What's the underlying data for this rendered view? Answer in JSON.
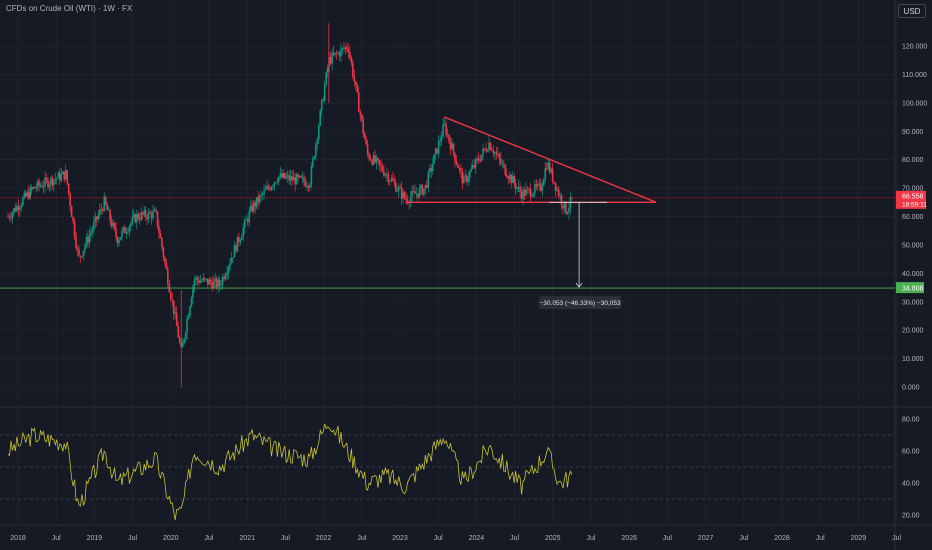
{
  "header": {
    "title": "CFDs on Crude Oil (WTI) · 1W · FX",
    "currency_button": "USD"
  },
  "colors": {
    "bg": "#161a25",
    "grid": "#1f232e",
    "up": "#089981",
    "down": "#f23645",
    "pattern": "#f23645",
    "target_line": "#4caf50",
    "rsi": "#c5c234",
    "axis_text": "#b2b5be"
  },
  "price_axis": {
    "ticks": [
      "120.000",
      "110.000",
      "100.000",
      "90.000",
      "80.000",
      "70.000",
      "60.000",
      "50.000",
      "40.000",
      "30.000",
      "20.000",
      "10.000",
      "0.000"
    ]
  },
  "rsi_axis": {
    "ticks": [
      "80.00",
      "60.00",
      "40.00",
      "20.00"
    ]
  },
  "time_axis": {
    "ticks": [
      "2018",
      "Jul",
      "2019",
      "Jul",
      "2020",
      "Jul",
      "2021",
      "Jul",
      "2022",
      "Jul",
      "2023",
      "Jul",
      "2024",
      "Jul",
      "2025",
      "Jul",
      "2026",
      "Jul",
      "2027",
      "Jul",
      "2028",
      "Jul",
      "2029",
      "Jul"
    ]
  },
  "current_price": {
    "value": "66.558",
    "countdown": "18:59:11"
  },
  "target_price": {
    "value": "34.808"
  },
  "measure_label": "−30.053 (−46.33%) −30,053",
  "chart_data": {
    "type": "candlestick",
    "title": "CFDs on Crude Oil (WTI) · 1W · FX",
    "x_range": [
      "2018-01",
      "2029-07"
    ],
    "ylim": [
      0,
      125
    ],
    "price_path": [
      [
        "2018-01",
        60
      ],
      [
        "2018-05",
        70
      ],
      [
        "2018-10",
        75
      ],
      [
        "2018-12",
        45
      ],
      [
        "2019-04",
        65
      ],
      [
        "2019-06",
        52
      ],
      [
        "2019-09",
        60
      ],
      [
        "2019-12",
        61
      ],
      [
        "2020-03",
        25
      ],
      [
        "2020-04",
        12
      ],
      [
        "2020-06",
        38
      ],
      [
        "2020-10",
        36
      ],
      [
        "2021-03",
        63
      ],
      [
        "2021-07",
        74
      ],
      [
        "2021-12",
        72
      ],
      [
        "2022-03",
        115
      ],
      [
        "2022-06",
        120
      ],
      [
        "2022-09",
        82
      ],
      [
        "2022-12",
        75
      ],
      [
        "2023-03",
        66
      ],
      [
        "2023-06",
        70
      ],
      [
        "2023-09",
        92
      ],
      [
        "2023-12",
        72
      ],
      [
        "2024-04",
        86
      ],
      [
        "2024-06",
        78
      ],
      [
        "2024-09",
        68
      ],
      [
        "2024-12",
        70
      ],
      [
        "2025-01",
        79
      ],
      [
        "2025-03",
        67
      ],
      [
        "2025-04",
        62
      ],
      [
        "2025-05",
        66.558
      ]
    ],
    "descending_triangle": {
      "resistance": [
        [
          "2023-09",
          95
        ],
        [
          "2026-06",
          65
        ]
      ],
      "support": [
        [
          "2023-03",
          65
        ],
        [
          "2026-06",
          65
        ]
      ]
    },
    "horizontal_lines": [
      {
        "name": "current",
        "y": 66.558
      },
      {
        "name": "target",
        "y": 34.808
      }
    ],
    "measure": {
      "from": 65,
      "to": 34.808,
      "at": "2025-06",
      "label": "−30.053 (−46.33%) −30,053"
    },
    "rsi": {
      "ylim": [
        15,
        85
      ],
      "levels": [
        70,
        50,
        30
      ],
      "path": [
        [
          "2018-01",
          60
        ],
        [
          "2018-05",
          70
        ],
        [
          "2018-10",
          65
        ],
        [
          "2018-12",
          25
        ],
        [
          "2019-04",
          60
        ],
        [
          "2019-06",
          40
        ],
        [
          "2019-12",
          55
        ],
        [
          "2020-03",
          20
        ],
        [
          "2020-04",
          22
        ],
        [
          "2020-06",
          60
        ],
        [
          "2020-10",
          50
        ],
        [
          "2021-03",
          70
        ],
        [
          "2021-07",
          60
        ],
        [
          "2021-12",
          55
        ],
        [
          "2022-03",
          80
        ],
        [
          "2022-06",
          60
        ],
        [
          "2022-09",
          40
        ],
        [
          "2022-12",
          45
        ],
        [
          "2023-03",
          38
        ],
        [
          "2023-09",
          70
        ],
        [
          "2023-12",
          40
        ],
        [
          "2024-04",
          63
        ],
        [
          "2024-09",
          38
        ],
        [
          "2025-01",
          60
        ],
        [
          "2025-03",
          40
        ],
        [
          "2025-05",
          45
        ]
      ]
    }
  }
}
